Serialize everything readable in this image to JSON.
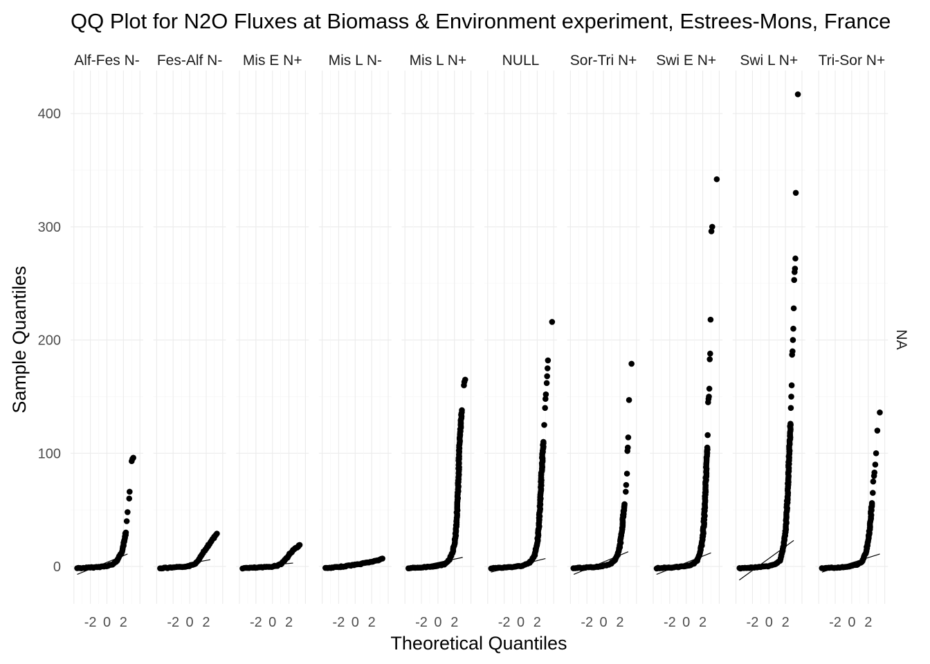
{
  "chart_data": {
    "type": "scatter",
    "title": "QQ Plot for N2O Fluxes at Biomass & Environment experiment, Estrees-Mons, France",
    "xlabel": "Theoretical Quantiles",
    "ylabel": "Sample Quantiles",
    "row_strip": "NA",
    "ylim": [
      -33,
      438
    ],
    "yticks": [
      0,
      100,
      200,
      300,
      400
    ],
    "xlim": [
      -4.4,
      4.4
    ],
    "xticks": [
      -2,
      0,
      2
    ],
    "grid": true,
    "point_color": "#000000",
    "line_color": "#000000",
    "panels": [
      {
        "label": "Alf-Fes N-",
        "xmax": 3.3,
        "line": [
          [
            -3.6,
            -7
          ],
          [
            2.5,
            11
          ]
        ],
        "curve": [
          [
            -3.6,
            -1.5
          ],
          [
            -2.5,
            -1.2
          ],
          [
            -1.0,
            -0.5
          ],
          [
            0.0,
            0.5
          ],
          [
            0.8,
            2
          ],
          [
            1.2,
            5
          ],
          [
            1.6,
            10
          ],
          [
            1.9,
            15
          ],
          [
            2.1,
            22
          ],
          [
            2.3,
            30
          ]
        ],
        "outliers": [
          [
            2.4,
            40
          ],
          [
            2.5,
            48
          ],
          [
            2.7,
            60
          ],
          [
            2.75,
            66
          ],
          [
            3.0,
            93
          ],
          [
            3.1,
            95
          ],
          [
            3.2,
            96
          ]
        ]
      },
      {
        "label": "Fes-Alf N-",
        "xmax": 3.3,
        "line": [
          [
            -3.6,
            -2
          ],
          [
            2.5,
            6
          ]
        ],
        "curve": [
          [
            -3.6,
            -1.5
          ],
          [
            -2.5,
            -1.2
          ],
          [
            -1.0,
            -0.5
          ],
          [
            0.0,
            0.5
          ],
          [
            0.6,
            2
          ],
          [
            1.0,
            5
          ],
          [
            1.4,
            10
          ],
          [
            1.8,
            14
          ],
          [
            2.2,
            18
          ],
          [
            2.6,
            22
          ],
          [
            3.0,
            26
          ],
          [
            3.3,
            29
          ]
        ],
        "outliers": []
      },
      {
        "label": "Mis E N+",
        "xmax": 3.3,
        "line": [
          [
            -3.6,
            -1
          ],
          [
            2.5,
            3
          ]
        ],
        "curve": [
          [
            -3.6,
            -1.5
          ],
          [
            -2.5,
            -1.2
          ],
          [
            -1.0,
            -0.7
          ],
          [
            0.0,
            0
          ],
          [
            0.6,
            0.8
          ],
          [
            1.0,
            2
          ],
          [
            1.4,
            5
          ],
          [
            1.8,
            8
          ],
          [
            2.2,
            12
          ],
          [
            2.6,
            15
          ],
          [
            3.0,
            17
          ],
          [
            3.3,
            19
          ]
        ],
        "outliers": []
      },
      {
        "label": "Mis L N-",
        "xmax": 3.3,
        "line": [
          [
            -3.6,
            0
          ],
          [
            2.5,
            4
          ]
        ],
        "curve": [
          [
            -3.6,
            -1.5
          ],
          [
            -2.8,
            -1.2
          ],
          [
            -1.5,
            0
          ],
          [
            -0.5,
            1
          ],
          [
            0.5,
            2
          ],
          [
            1.5,
            3.5
          ],
          [
            2.5,
            5
          ],
          [
            3.0,
            6
          ],
          [
            3.3,
            7
          ]
        ],
        "outliers": []
      },
      {
        "label": "Mis L N+",
        "xmax": 3.7,
        "line": [
          [
            -3.6,
            -2
          ],
          [
            3.0,
            8
          ]
        ],
        "curve": [
          [
            -3.6,
            -1.5
          ],
          [
            -2.5,
            -1.2
          ],
          [
            -1.0,
            -0.2
          ],
          [
            0.0,
            0.5
          ],
          [
            0.8,
            2
          ],
          [
            1.3,
            5
          ],
          [
            1.8,
            12
          ],
          [
            2.1,
            25
          ],
          [
            2.25,
            40
          ],
          [
            2.4,
            60
          ],
          [
            2.5,
            80
          ],
          [
            2.55,
            100
          ],
          [
            2.65,
            112
          ],
          [
            2.8,
            130
          ],
          [
            2.9,
            138
          ]
        ],
        "outliers": [
          [
            3.15,
            160
          ],
          [
            3.2,
            163
          ],
          [
            3.3,
            165
          ]
        ]
      },
      {
        "label": "NULL",
        "xmax": 3.7,
        "line": [
          [
            -3.6,
            -5
          ],
          [
            3.0,
            7
          ]
        ],
        "curve": [
          [
            -3.6,
            -1.5
          ],
          [
            -2.5,
            -1.2
          ],
          [
            -1.0,
            -0.5
          ],
          [
            0.0,
            0.5
          ],
          [
            0.8,
            2
          ],
          [
            1.3,
            5
          ],
          [
            1.7,
            10
          ],
          [
            2.0,
            20
          ],
          [
            2.2,
            35
          ],
          [
            2.35,
            55
          ],
          [
            2.45,
            70
          ],
          [
            2.55,
            85
          ],
          [
            2.65,
            100
          ],
          [
            2.75,
            110
          ]
        ],
        "outliers": [
          [
            2.85,
            125
          ],
          [
            2.95,
            140
          ],
          [
            3.0,
            148
          ],
          [
            3.05,
            152
          ],
          [
            3.15,
            162
          ],
          [
            3.2,
            168
          ],
          [
            3.25,
            175
          ],
          [
            3.3,
            182
          ],
          [
            3.8,
            216
          ]
        ]
      },
      {
        "label": "Sor-Tri N+",
        "xmax": 3.4,
        "line": [
          [
            -3.6,
            -7
          ],
          [
            3.0,
            13
          ]
        ],
        "curve": [
          [
            -3.6,
            -1.5
          ],
          [
            -2.5,
            -1.2
          ],
          [
            -1.0,
            -0.5
          ],
          [
            0.0,
            0.5
          ],
          [
            0.8,
            2
          ],
          [
            1.3,
            5
          ],
          [
            1.7,
            10
          ],
          [
            2.0,
            18
          ],
          [
            2.2,
            30
          ],
          [
            2.4,
            45
          ],
          [
            2.55,
            55
          ]
        ],
        "outliers": [
          [
            2.7,
            66
          ],
          [
            2.75,
            72
          ],
          [
            2.85,
            82
          ],
          [
            2.9,
            102
          ],
          [
            2.95,
            105
          ],
          [
            3.0,
            114
          ],
          [
            3.1,
            147
          ],
          [
            3.4,
            179
          ]
        ]
      },
      {
        "label": "Swi E N+",
        "xmax": 3.7,
        "line": [
          [
            -3.6,
            -7
          ],
          [
            3.0,
            12
          ]
        ],
        "curve": [
          [
            -3.6,
            -1.5
          ],
          [
            -2.5,
            -1.2
          ],
          [
            -1.0,
            -0.5
          ],
          [
            0.0,
            0.5
          ],
          [
            0.8,
            2
          ],
          [
            1.3,
            5
          ],
          [
            1.7,
            12
          ],
          [
            2.0,
            25
          ],
          [
            2.2,
            45
          ],
          [
            2.35,
            70
          ],
          [
            2.45,
            90
          ],
          [
            2.55,
            105
          ]
        ],
        "outliers": [
          [
            2.6,
            116
          ],
          [
            2.65,
            145
          ],
          [
            2.7,
            148
          ],
          [
            2.75,
            150
          ],
          [
            2.8,
            157
          ],
          [
            2.85,
            183
          ],
          [
            2.9,
            188
          ],
          [
            2.95,
            218
          ],
          [
            3.05,
            296
          ],
          [
            3.15,
            300
          ],
          [
            3.7,
            342
          ]
        ]
      },
      {
        "label": "Swi L N+",
        "xmax": 3.7,
        "line": [
          [
            -3.6,
            -12
          ],
          [
            3.0,
            23
          ]
        ],
        "curve": [
          [
            -3.6,
            -1.5
          ],
          [
            -2.5,
            -1.2
          ],
          [
            -1.0,
            -0.5
          ],
          [
            0.0,
            0.5
          ],
          [
            0.8,
            2
          ],
          [
            1.3,
            5
          ],
          [
            1.7,
            15
          ],
          [
            2.0,
            30
          ],
          [
            2.2,
            55
          ],
          [
            2.35,
            80
          ],
          [
            2.45,
            100
          ],
          [
            2.55,
            115
          ],
          [
            2.6,
            126
          ]
        ],
        "outliers": [
          [
            2.65,
            140
          ],
          [
            2.7,
            150
          ],
          [
            2.75,
            160
          ],
          [
            2.8,
            187
          ],
          [
            2.85,
            190
          ],
          [
            2.9,
            200
          ],
          [
            2.95,
            210
          ],
          [
            3.0,
            228
          ],
          [
            3.05,
            253
          ],
          [
            3.1,
            260
          ],
          [
            3.15,
            263
          ],
          [
            3.2,
            272
          ],
          [
            3.25,
            330
          ],
          [
            3.5,
            417
          ]
        ]
      },
      {
        "label": "Tri-Sor N+",
        "xmax": 3.4,
        "line": [
          [
            -3.6,
            -5
          ],
          [
            3.4,
            11
          ]
        ],
        "curve": [
          [
            -3.6,
            -1.5
          ],
          [
            -2.5,
            -1.2
          ],
          [
            -1.0,
            -0.5
          ],
          [
            0.0,
            0.5
          ],
          [
            0.8,
            2
          ],
          [
            1.3,
            5
          ],
          [
            1.7,
            12
          ],
          [
            2.0,
            22
          ],
          [
            2.2,
            35
          ],
          [
            2.35,
            48
          ],
          [
            2.45,
            56
          ]
        ],
        "outliers": [
          [
            2.55,
            65
          ],
          [
            2.6,
            75
          ],
          [
            2.7,
            80
          ],
          [
            2.75,
            83
          ],
          [
            2.85,
            90
          ],
          [
            2.95,
            100
          ],
          [
            3.1,
            120
          ],
          [
            3.4,
            136
          ]
        ]
      }
    ]
  }
}
